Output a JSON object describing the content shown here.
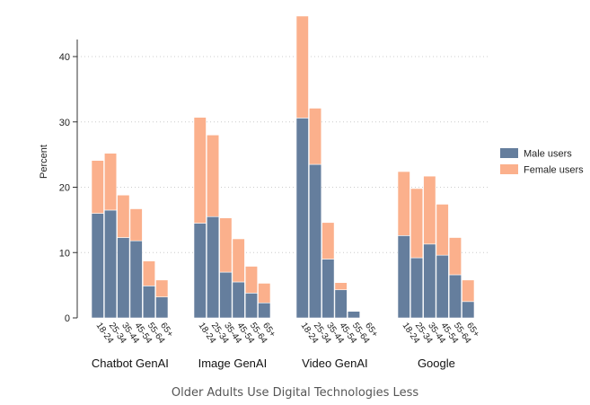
{
  "chart_data": {
    "type": "bar",
    "stacked": true,
    "ylabel": "Percent",
    "ylim": [
      0,
      46
    ],
    "yticks": [
      0,
      10,
      20,
      30,
      40
    ],
    "grid": "horizontal dotted",
    "legend_placement": "right",
    "groups": [
      {
        "name": "Chatbot GenAI",
        "categories": [
          "18-24",
          "25-34",
          "35-44",
          "45-54",
          "55-64",
          "65+"
        ],
        "male": [
          16.0,
          16.5,
          12.3,
          11.8,
          4.9,
          3.2
        ],
        "female": [
          8.1,
          8.7,
          6.5,
          4.9,
          3.8,
          2.6
        ]
      },
      {
        "name": "Image GenAI",
        "categories": [
          "18-24",
          "25-34",
          "35-44",
          "45-54",
          "55-64",
          "65+"
        ],
        "male": [
          14.5,
          15.5,
          7.0,
          5.5,
          3.8,
          2.3
        ],
        "female": [
          16.2,
          12.5,
          8.3,
          6.6,
          4.1,
          3.0
        ]
      },
      {
        "name": "Video GenAI",
        "categories": [
          "18-24",
          "25-34",
          "35-44",
          "45-54",
          "55-64",
          "65+"
        ],
        "male": [
          30.6,
          23.5,
          9.0,
          4.3,
          1.0,
          0.0
        ],
        "female": [
          15.6,
          8.6,
          5.6,
          1.1,
          0.0,
          0.0
        ]
      },
      {
        "name": "Google",
        "categories": [
          "18-24",
          "25-34",
          "35-44",
          "45-54",
          "55-64",
          "65+"
        ],
        "male": [
          12.6,
          9.2,
          11.3,
          9.6,
          6.6,
          2.5
        ],
        "female": [
          9.8,
          10.6,
          10.4,
          7.8,
          5.7,
          3.3
        ]
      }
    ],
    "series": [
      {
        "name": "Male users",
        "color": "#657e9d"
      },
      {
        "name": "Female users",
        "color": "#fbb08c"
      }
    ]
  },
  "caption": "Older Adults Use Digital Technologies Less"
}
